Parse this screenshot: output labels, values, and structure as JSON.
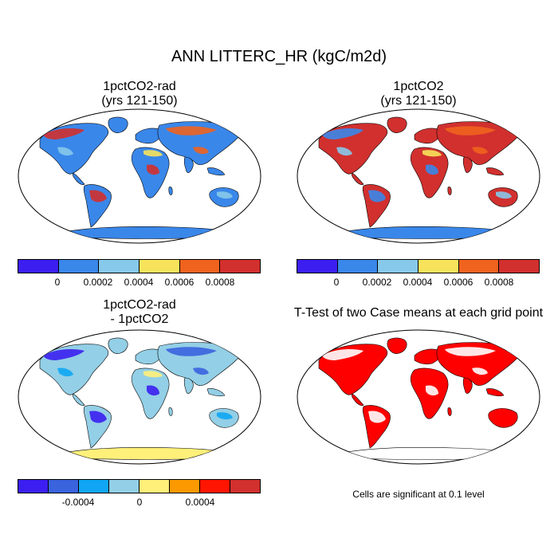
{
  "main_title": "ANN LITTERC_HR (kgC/m2d)",
  "panels": [
    {
      "title": "1pctCO2-rad",
      "subtitle": "(yrs 121-150)"
    },
    {
      "title": "1pctCO2",
      "subtitle": "(yrs 121-150)"
    },
    {
      "title": "1pctCO2-rad",
      "subtitle": "- 1pctCO2"
    },
    {
      "title": "T-Test of two Case means at each grid point"
    }
  ],
  "colorbar_abs": {
    "colors": [
      "#3c1ff0",
      "#3a87ea",
      "#87c9ea",
      "#f7e35b",
      "#f0631f",
      "#d1302e"
    ],
    "ticks": [
      "0",
      "0.0002",
      "0.0004",
      "0.0006",
      "0.0008"
    ]
  },
  "colorbar_diff": {
    "colors": [
      "#3c1ff0",
      "#3a63de",
      "#10a6f3",
      "#93cfe6",
      "#fff07a",
      "#fb9900",
      "#ff1500",
      "#d1302e"
    ],
    "ticks": [
      "-0.0004",
      "0",
      "0.0004"
    ]
  },
  "ttest_note": "Cells are significant at 0.1 level",
  "map_colors": {
    "p1": {
      "land": "#3a87ea",
      "accent1": "#d1302e",
      "accent2": "#f0631f",
      "accent3": "#f7e35b",
      "accent4": "#87c9ea",
      "ant": "#3a87ea"
    },
    "p2": {
      "land": "#d1302e",
      "accent1": "#3a87ea",
      "accent2": "#f0631f",
      "accent3": "#f7e35b",
      "accent4": "#87c9ea",
      "ant": "#3a87ea"
    },
    "p3": {
      "land": "#93cfe6",
      "accent1": "#3c1ff0",
      "accent2": "#3a63de",
      "accent3": "#fff07a",
      "accent4": "#10a6f3",
      "ant": "#fff07a"
    },
    "p4": {
      "land": "#ff0000",
      "accent1": "#ffffff",
      "accent2": "#ffffff",
      "accent3": "#ff0000",
      "accent4": "#ff0000",
      "ant": "#ffffff"
    }
  }
}
